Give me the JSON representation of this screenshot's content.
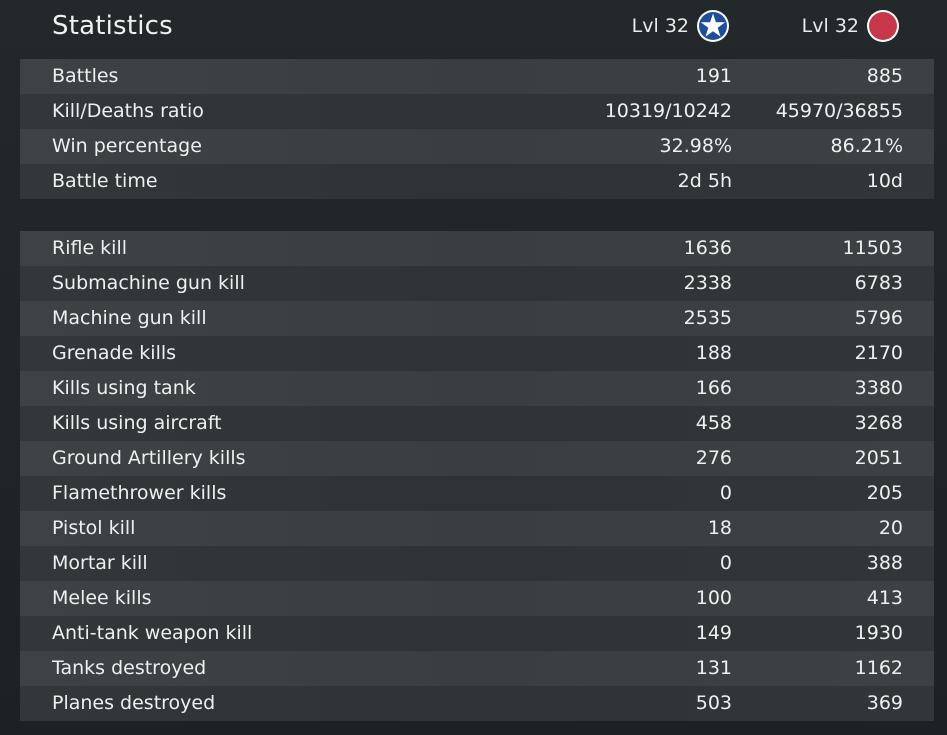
{
  "header": {
    "title": "Statistics",
    "allies": {
      "level_label": "Lvl 32",
      "icon": "allies-star-icon",
      "color": "#1e4e9a"
    },
    "axis": {
      "level_label": "Lvl 32",
      "icon": "axis-red-circle-icon",
      "color": "#c8364a"
    }
  },
  "general": [
    {
      "label": "Battles",
      "allies": "191",
      "axis": "885"
    },
    {
      "label": "Kill/Deaths ratio",
      "allies": "10319/10242",
      "axis": "45970/36855"
    },
    {
      "label": "Win percentage",
      "allies": "32.98%",
      "axis": "86.21%"
    },
    {
      "label": "Battle time",
      "allies": "2d 5h",
      "axis": "10d"
    }
  ],
  "kills": [
    {
      "label": "Rifle kill",
      "allies": "1636",
      "axis": "11503"
    },
    {
      "label": "Submachine gun kill",
      "allies": "2338",
      "axis": "6783"
    },
    {
      "label": "Machine gun kill",
      "allies": "2535",
      "axis": "5796"
    },
    {
      "label": "Grenade kills",
      "allies": "188",
      "axis": "2170"
    },
    {
      "label": "Kills using tank",
      "allies": "166",
      "axis": "3380"
    },
    {
      "label": "Kills using aircraft",
      "allies": "458",
      "axis": "3268"
    },
    {
      "label": "Ground Artillery kills",
      "allies": "276",
      "axis": "2051"
    },
    {
      "label": "Flamethrower kills",
      "allies": "0",
      "axis": "205"
    },
    {
      "label": "Pistol kill",
      "allies": "18",
      "axis": "20"
    },
    {
      "label": "Mortar kill",
      "allies": "0",
      "axis": "388"
    },
    {
      "label": "Melee kills",
      "allies": "100",
      "axis": "413"
    },
    {
      "label": "Anti-tank weapon kill",
      "allies": "149",
      "axis": "1930"
    },
    {
      "label": "Tanks destroyed",
      "allies": "131",
      "axis": "1162"
    },
    {
      "label": "Planes destroyed",
      "allies": "503",
      "axis": "369"
    }
  ]
}
